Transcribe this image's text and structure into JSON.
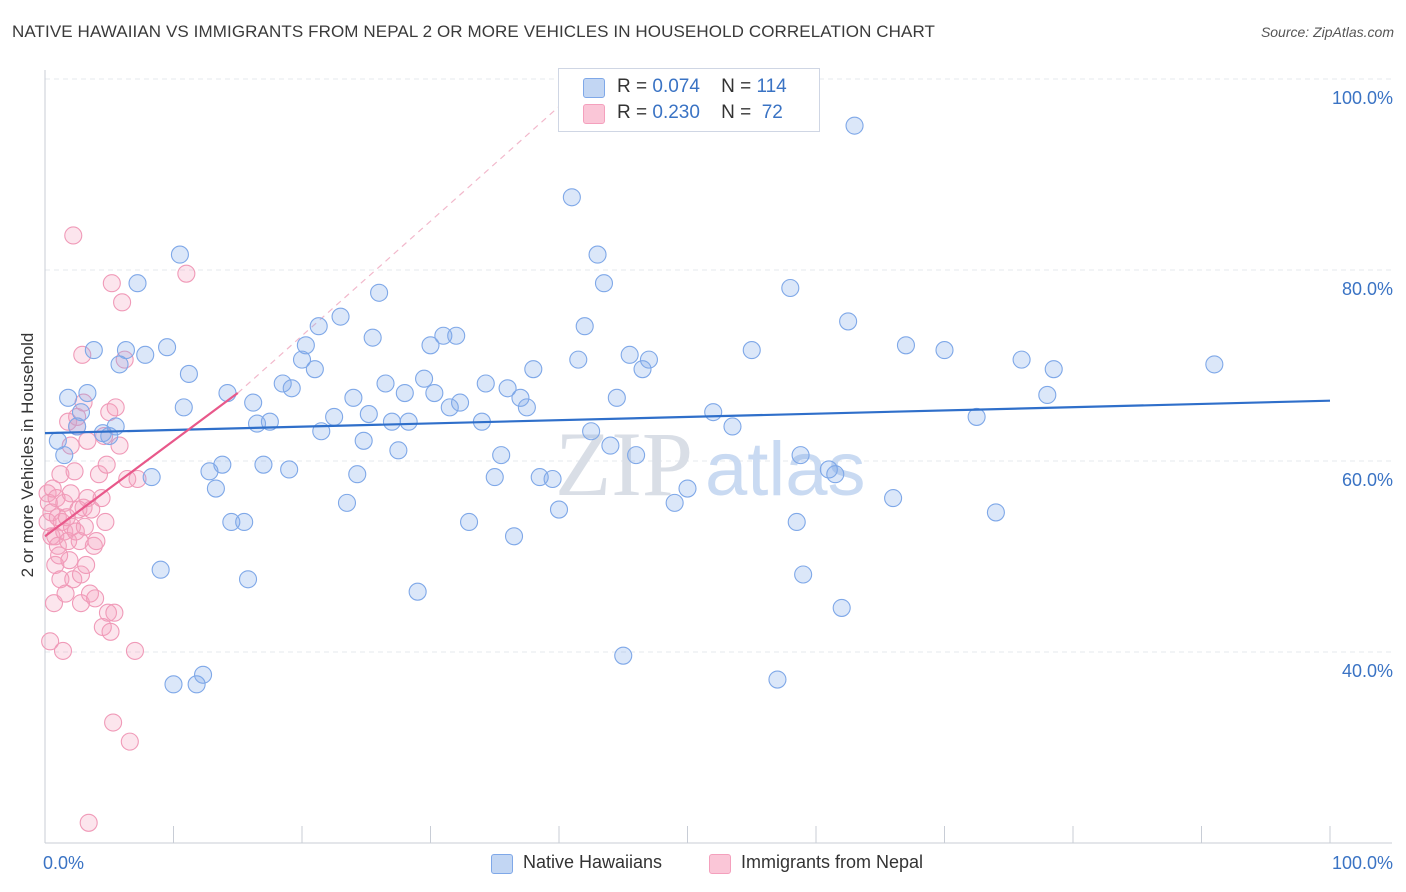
{
  "title": "NATIVE HAWAIIAN VS IMMIGRANTS FROM NEPAL 2 OR MORE VEHICLES IN HOUSEHOLD CORRELATION CHART",
  "source": "Source: ZipAtlas.com",
  "watermark": {
    "zip": "ZIP",
    "atlas": "atlas"
  },
  "legend": {
    "r_label": "R =",
    "n_label": "N =",
    "rows": [
      {
        "r": "0.074",
        "n": "114"
      },
      {
        "r": "0.230",
        "n": "72"
      }
    ]
  },
  "chart_data": {
    "type": "scatter",
    "title": "NATIVE HAWAIIAN VS IMMIGRANTS FROM NEPAL 2 OR MORE VEHICLES IN HOUSEHOLD CORRELATION CHART",
    "xlabel": "",
    "ylabel": "2 or more Vehicles in Household",
    "xlim": [
      0,
      100
    ],
    "ylim": [
      20,
      102
    ],
    "x_tick_labels": [
      "0.0%",
      "100.0%"
    ],
    "y_ticks": [
      40,
      60,
      80,
      100
    ],
    "y_tick_labels": [
      "40.0%",
      "60.0%",
      "80.0%",
      "100.0%"
    ],
    "grid": true,
    "legend_placement": "top-center",
    "series": [
      {
        "name": "Native Hawaiians",
        "color": "#7fa8e8",
        "line_color": "#2f6fca",
        "trend": {
          "x": [
            0,
            100
          ],
          "y": [
            64.8,
            68.2
          ]
        },
        "points": [
          [
            1,
            64
          ],
          [
            1.5,
            62.5
          ],
          [
            1.8,
            68.5
          ],
          [
            2.5,
            65.5
          ],
          [
            2.8,
            67
          ],
          [
            3.3,
            69
          ],
          [
            3.8,
            73.5
          ],
          [
            4.5,
            64.8
          ],
          [
            5,
            64.5
          ],
          [
            5.5,
            65.5
          ],
          [
            5.8,
            72
          ],
          [
            6.3,
            73.5
          ],
          [
            7.2,
            80.5
          ],
          [
            7.8,
            73
          ],
          [
            8.3,
            60.2
          ],
          [
            9,
            50.5
          ],
          [
            9.5,
            73.8
          ],
          [
            10,
            38.5
          ],
          [
            10.5,
            83.5
          ],
          [
            10.8,
            67.5
          ],
          [
            11.2,
            71
          ],
          [
            11.8,
            38.5
          ],
          [
            12.3,
            39.5
          ],
          [
            12.8,
            60.8
          ],
          [
            13.3,
            59
          ],
          [
            13.8,
            61.5
          ],
          [
            14.2,
            69
          ],
          [
            14.5,
            55.5
          ],
          [
            15.5,
            55.5
          ],
          [
            15.8,
            49.5
          ],
          [
            16.2,
            68
          ],
          [
            16.5,
            65.8
          ],
          [
            17,
            61.5
          ],
          [
            17.5,
            66
          ],
          [
            18.5,
            70
          ],
          [
            19,
            61
          ],
          [
            19.2,
            69.5
          ],
          [
            20,
            72.5
          ],
          [
            20.3,
            74
          ],
          [
            21,
            71.5
          ],
          [
            21.3,
            76
          ],
          [
            21.5,
            65
          ],
          [
            22.5,
            66.5
          ],
          [
            23,
            77
          ],
          [
            23.5,
            57.5
          ],
          [
            24,
            68.5
          ],
          [
            24.3,
            60.5
          ],
          [
            24.8,
            64
          ],
          [
            25.2,
            66.8
          ],
          [
            25.5,
            74.8
          ],
          [
            26,
            79.5
          ],
          [
            26.5,
            70
          ],
          [
            27,
            66
          ],
          [
            27.5,
            63
          ],
          [
            28,
            69
          ],
          [
            28.3,
            66
          ],
          [
            29,
            48.2
          ],
          [
            29.5,
            70.5
          ],
          [
            30,
            74
          ],
          [
            30.3,
            69
          ],
          [
            31,
            75
          ],
          [
            31.5,
            67.5
          ],
          [
            32,
            75
          ],
          [
            32.3,
            68
          ],
          [
            33,
            55.5
          ],
          [
            34,
            66
          ],
          [
            34.3,
            70
          ],
          [
            35,
            60.2
          ],
          [
            35.5,
            62.5
          ],
          [
            36,
            69.5
          ],
          [
            36.5,
            54
          ],
          [
            37,
            68.5
          ],
          [
            37.5,
            67.5
          ],
          [
            38,
            71.5
          ],
          [
            38.5,
            60.2
          ],
          [
            39.5,
            60
          ],
          [
            40,
            56.8
          ],
          [
            41,
            89.5
          ],
          [
            41.5,
            72.5
          ],
          [
            42,
            76
          ],
          [
            42.5,
            65
          ],
          [
            43,
            83.5
          ],
          [
            43.5,
            80.5
          ],
          [
            44,
            63.5
          ],
          [
            44.5,
            68.5
          ],
          [
            45,
            41.5
          ],
          [
            45.5,
            73
          ],
          [
            46,
            62.5
          ],
          [
            46.5,
            71.5
          ],
          [
            47,
            72.5
          ],
          [
            49,
            57.5
          ],
          [
            50,
            59
          ],
          [
            52,
            67
          ],
          [
            53.5,
            65.5
          ],
          [
            55,
            73.5
          ],
          [
            57,
            39
          ],
          [
            58,
            80
          ],
          [
            58.5,
            55.5
          ],
          [
            58.8,
            62.5
          ],
          [
            59,
            50
          ],
          [
            61,
            61
          ],
          [
            61.5,
            60.5
          ],
          [
            62,
            46.5
          ],
          [
            62.5,
            76.5
          ],
          [
            63,
            97
          ],
          [
            66,
            58
          ],
          [
            67,
            74
          ],
          [
            70,
            73.5
          ],
          [
            72.5,
            66.5
          ],
          [
            74,
            56.5
          ],
          [
            76,
            72.5
          ],
          [
            78,
            68.8
          ],
          [
            78.5,
            71.5
          ],
          [
            91,
            72
          ]
        ]
      },
      {
        "name": "Immigrants from Nepal",
        "color": "#f4a0bd",
        "line_color": "#e8588a",
        "trend": {
          "x": [
            0,
            15
          ],
          "y": [
            54,
            69
          ]
        },
        "trend_extension": {
          "x": [
            15,
            40
          ],
          "y": [
            69,
            99
          ]
        },
        "points": [
          [
            0.2,
            58.5
          ],
          [
            0.2,
            55.5
          ],
          [
            0.3,
            57.5
          ],
          [
            0.4,
            43
          ],
          [
            0.5,
            56.5
          ],
          [
            0.5,
            54
          ],
          [
            0.6,
            59
          ],
          [
            0.7,
            47
          ],
          [
            0.8,
            54
          ],
          [
            0.8,
            51
          ],
          [
            0.9,
            58
          ],
          [
            1,
            56
          ],
          [
            1,
            53
          ],
          [
            1.2,
            60.5
          ],
          [
            1.2,
            49.5
          ],
          [
            1.3,
            55.5
          ],
          [
            1.4,
            42
          ],
          [
            1.5,
            54.5
          ],
          [
            1.5,
            57.5
          ],
          [
            1.6,
            48
          ],
          [
            1.7,
            56
          ],
          [
            1.8,
            66
          ],
          [
            1.8,
            53.5
          ],
          [
            1.9,
            51.5
          ],
          [
            2,
            63.5
          ],
          [
            2,
            58.5
          ],
          [
            2.1,
            55
          ],
          [
            2.2,
            49.5
          ],
          [
            2.2,
            85.5
          ],
          [
            2.3,
            60.8
          ],
          [
            2.4,
            54.5
          ],
          [
            2.5,
            66.5
          ],
          [
            2.5,
            65.5
          ],
          [
            2.6,
            56.8
          ],
          [
            2.7,
            53.5
          ],
          [
            2.8,
            50
          ],
          [
            2.8,
            47
          ],
          [
            2.9,
            73
          ],
          [
            3,
            68
          ],
          [
            3,
            57
          ],
          [
            3.1,
            55
          ],
          [
            3.2,
            51
          ],
          [
            3.3,
            64
          ],
          [
            3.3,
            58
          ],
          [
            3.4,
            24
          ],
          [
            3.5,
            48
          ],
          [
            3.6,
            56.8
          ],
          [
            3.8,
            53
          ],
          [
            3.9,
            47.5
          ],
          [
            4,
            53.5
          ],
          [
            4.2,
            60.5
          ],
          [
            4.4,
            58
          ],
          [
            4.5,
            44.5
          ],
          [
            4.6,
            64.5
          ],
          [
            4.7,
            55.5
          ],
          [
            4.8,
            61.5
          ],
          [
            4.9,
            46
          ],
          [
            5,
            67
          ],
          [
            5.1,
            44
          ],
          [
            5.2,
            80.5
          ],
          [
            5.3,
            34.5
          ],
          [
            5.4,
            46
          ],
          [
            5.5,
            67.5
          ],
          [
            5.8,
            63.5
          ],
          [
            6,
            78.5
          ],
          [
            6.2,
            72.5
          ],
          [
            6.4,
            60
          ],
          [
            6.6,
            32.5
          ],
          [
            7,
            42
          ],
          [
            7.2,
            60
          ],
          [
            11,
            81.5
          ],
          [
            1.1,
            52
          ]
        ]
      }
    ]
  }
}
